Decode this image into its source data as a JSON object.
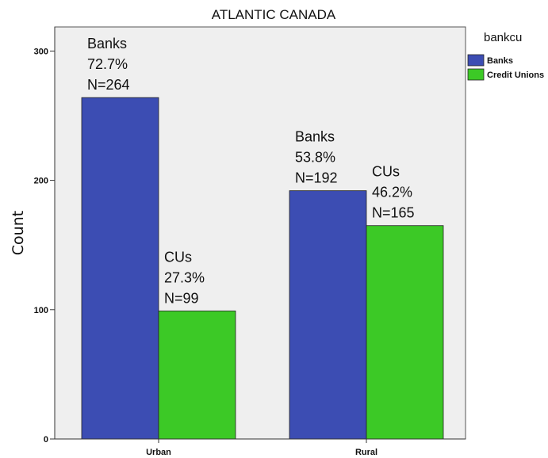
{
  "chart_data": {
    "type": "bar",
    "title": "ATLANTIC CANADA",
    "xlabel": "",
    "ylabel": "Count",
    "categories": [
      "Urban",
      "Rural"
    ],
    "ylim": [
      0,
      310
    ],
    "yticks": [
      0,
      100,
      200,
      300
    ],
    "grid": false,
    "legend_title": "bankcu",
    "legend_position": "top-right",
    "series": [
      {
        "name": "Banks",
        "color": "#3c4db3",
        "values": [
          264,
          192
        ],
        "labels": [
          [
            "Banks",
            "72.7%",
            "N=264"
          ],
          [
            "Banks",
            "53.8%",
            "N=192"
          ]
        ]
      },
      {
        "name": "Credit Unions",
        "color": "#3cc926",
        "values": [
          99,
          165
        ],
        "labels": [
          [
            "CUs",
            "27.3%",
            "N=99"
          ],
          [
            "CUs",
            "46.2%",
            "N=165"
          ]
        ]
      }
    ]
  }
}
